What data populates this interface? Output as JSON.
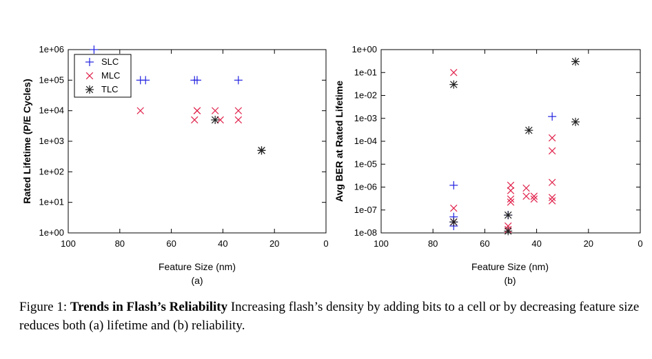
{
  "figure": {
    "caption_label": "Figure 1:",
    "caption_title": "Trends in Flash’s Reliability",
    "caption_text": "Increasing flash’s density by adding bits to a cell or by decreasing feature size reduces both (a) lifetime and (b) reliability."
  },
  "colors": {
    "SLC": "#2020e0",
    "MLC": "#e0204a",
    "TLC": "#202020"
  },
  "chart_data": [
    {
      "type": "scatter",
      "sublabel": "(a)",
      "xlabel": "Feature Size (nm)",
      "ylabel": "Rated Lifetime (P/E Cycles)",
      "xlim": [
        100,
        0
      ],
      "ylim": [
        1,
        1000000
      ],
      "yscale": "log",
      "xticks": [
        "100",
        "80",
        "60",
        "40",
        "20",
        "0"
      ],
      "yticks": [
        "1e+00",
        "1e+01",
        "1e+02",
        "1e+03",
        "1e+04",
        "1e+05",
        "1e+06"
      ],
      "legend_position": "top-left",
      "series": [
        {
          "name": "SLC",
          "marker": "plus",
          "points": [
            [
              90,
              1000000
            ],
            [
              72,
              100000
            ],
            [
              70,
              100000
            ],
            [
              51,
              100000
            ],
            [
              50,
              100000
            ],
            [
              34,
              100000
            ]
          ]
        },
        {
          "name": "MLC",
          "marker": "cross",
          "points": [
            [
              72,
              10000
            ],
            [
              51,
              5000
            ],
            [
              50,
              10000
            ],
            [
              50,
              10000
            ],
            [
              43,
              10000
            ],
            [
              41,
              5000
            ],
            [
              34,
              5000
            ],
            [
              34,
              10000
            ]
          ]
        },
        {
          "name": "TLC",
          "marker": "star",
          "points": [
            [
              43,
              5000
            ],
            [
              25,
              500
            ],
            [
              25,
              500
            ]
          ]
        }
      ]
    },
    {
      "type": "scatter",
      "sublabel": "(b)",
      "xlabel": "Feature Size (nm)",
      "ylabel": "Avg BER at Rated Lifetime",
      "xlim": [
        100,
        0
      ],
      "ylim": [
        1e-08,
        1
      ],
      "yscale": "log",
      "xticks": [
        "100",
        "80",
        "60",
        "40",
        "20",
        "0"
      ],
      "yticks": [
        "1e-08",
        "1e-07",
        "1e-06",
        "1e-05",
        "1e-04",
        "1e-03",
        "1e-02",
        "1e-01",
        "1e+00"
      ],
      "series": [
        {
          "name": "SLC",
          "marker": "plus",
          "points": [
            [
              72,
              1.2e-06
            ],
            [
              72,
              5e-08
            ],
            [
              72,
              3e-08
            ],
            [
              72,
              2e-08
            ],
            [
              51,
              6e-08
            ],
            [
              34,
              0.0012
            ]
          ]
        },
        {
          "name": "MLC",
          "marker": "cross",
          "points": [
            [
              72,
              0.1
            ],
            [
              72,
              1.2e-07
            ],
            [
              72,
              3e-08
            ],
            [
              51,
              2e-08
            ],
            [
              51,
              1.4e-08
            ],
            [
              50,
              1.2e-06
            ],
            [
              50,
              7e-07
            ],
            [
              50,
              3e-07
            ],
            [
              50,
              2.2e-07
            ],
            [
              44,
              9e-07
            ],
            [
              44,
              4e-07
            ],
            [
              41,
              3e-07
            ],
            [
              41,
              4e-07
            ],
            [
              34,
              0.00014
            ],
            [
              34,
              3.8e-05
            ],
            [
              34,
              1.6e-06
            ],
            [
              34,
              3.5e-07
            ],
            [
              34,
              2.5e-07
            ]
          ]
        },
        {
          "name": "TLC",
          "marker": "star",
          "points": [
            [
              72,
              0.03
            ],
            [
              72,
              3e-08
            ],
            [
              51,
              6e-08
            ],
            [
              51,
              1.2e-08
            ],
            [
              43,
              0.0003
            ],
            [
              25,
              0.3
            ],
            [
              25,
              0.0007
            ]
          ]
        }
      ]
    }
  ]
}
